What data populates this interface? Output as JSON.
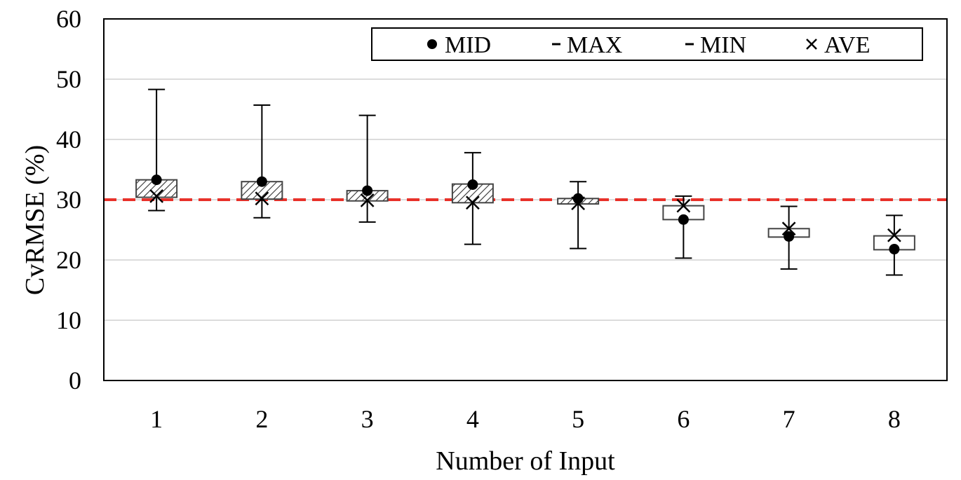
{
  "chart_data": {
    "type": "box",
    "title": "",
    "xlabel": "Number of Input",
    "ylabel": "CvRMSE (%)",
    "ylim": [
      0,
      60
    ],
    "yticks": [
      0,
      10,
      20,
      30,
      40,
      50,
      60
    ],
    "grid": true,
    "legend_placement": "top-right",
    "legend": [
      "MID",
      "MAX",
      "MIN",
      "AVE"
    ],
    "categories": [
      "1",
      "2",
      "3",
      "4",
      "5",
      "6",
      "7",
      "8"
    ],
    "series": [
      {
        "name": "MID",
        "values": [
          33.3,
          33.0,
          31.5,
          32.5,
          30.2,
          26.7,
          23.9,
          21.8
        ]
      },
      {
        "name": "MAX",
        "values": [
          48.3,
          45.7,
          44.0,
          37.8,
          33.0,
          30.6,
          28.9,
          27.4
        ]
      },
      {
        "name": "MIN",
        "values": [
          28.2,
          27.0,
          26.3,
          22.6,
          21.9,
          20.3,
          18.5,
          17.5
        ]
      },
      {
        "name": "AVE",
        "values": [
          30.6,
          30.2,
          29.9,
          29.5,
          29.4,
          29.0,
          25.2,
          24.1
        ]
      }
    ],
    "box_lower": [
      30.4,
      30.1,
      29.8,
      29.5,
      29.3,
      26.7,
      23.8,
      21.7
    ],
    "box_upper": [
      33.3,
      33.0,
      31.5,
      32.6,
      30.2,
      29.0,
      25.2,
      24.0
    ],
    "box_hatched": [
      true,
      true,
      true,
      true,
      true,
      false,
      false,
      false
    ],
    "threshold": 30,
    "threshold_color": "#e8312a"
  }
}
